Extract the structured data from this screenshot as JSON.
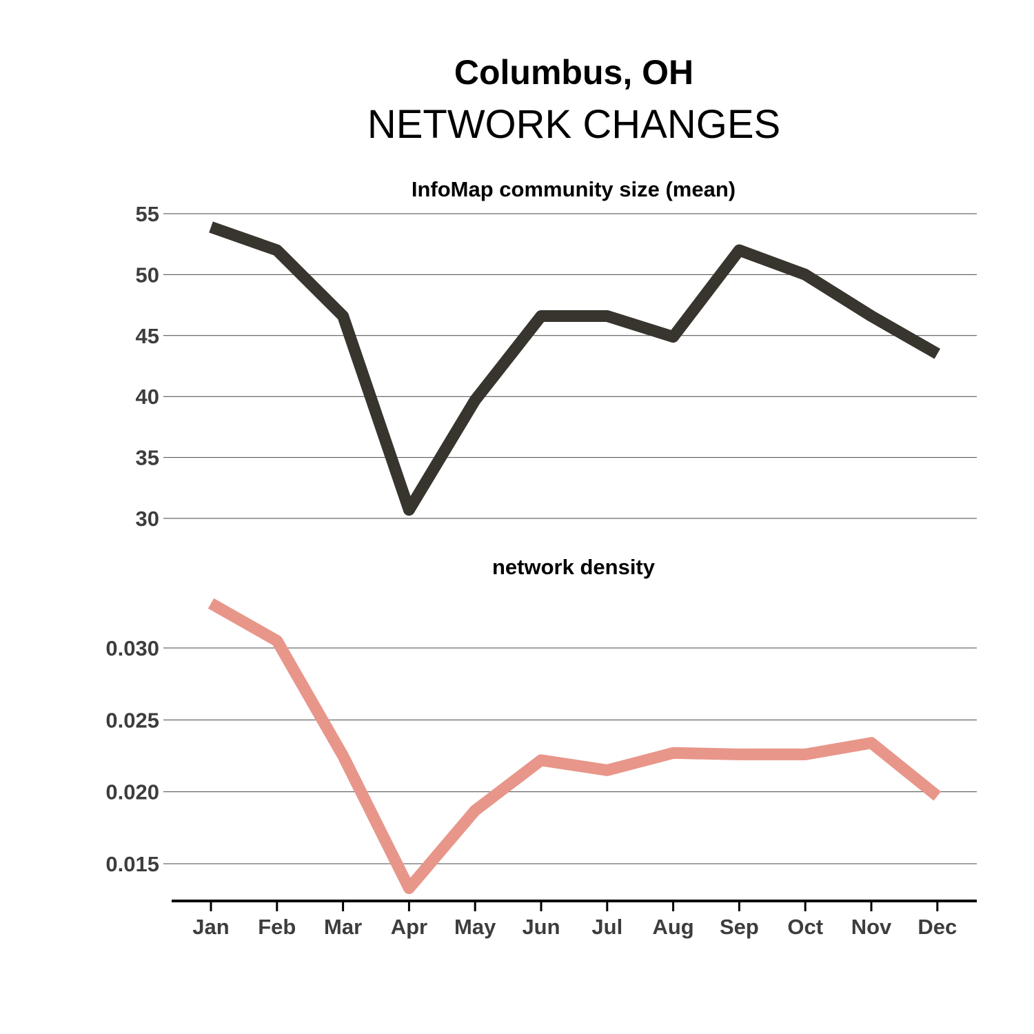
{
  "title": "Columbus, OH",
  "subtitle": "NETWORK CHANGES",
  "chart_data": [
    {
      "type": "line",
      "title": "InfoMap community size (mean)",
      "xlabel": "",
      "ylabel": "",
      "categories": [
        "Jan",
        "Feb",
        "Mar",
        "Apr",
        "May",
        "Jun",
        "Jul",
        "Aug",
        "Sep",
        "Oct",
        "Nov",
        "Dec"
      ],
      "series": [
        {
          "values": [
            53.9,
            52.0,
            46.6,
            30.7,
            39.7,
            46.6,
            46.6,
            44.9,
            52.0,
            50.0,
            46.6,
            43.5
          ],
          "color": "#37352d"
        }
      ],
      "yticks": [
        30,
        35,
        40,
        45,
        50,
        55
      ],
      "ytick_labels": [
        "30",
        "35",
        "40",
        "45",
        "50",
        "55"
      ],
      "ylim": [
        30,
        55
      ],
      "grid": true
    },
    {
      "type": "line",
      "title": "network density",
      "xlabel": "",
      "ylabel": "",
      "categories": [
        "Jan",
        "Feb",
        "Mar",
        "Apr",
        "May",
        "Jun",
        "Jul",
        "Aug",
        "Sep",
        "Oct",
        "Nov",
        "Dec"
      ],
      "series": [
        {
          "values": [
            0.0331,
            0.0305,
            0.0225,
            0.0133,
            0.0187,
            0.0222,
            0.0215,
            0.0227,
            0.0226,
            0.0226,
            0.0234,
            0.0197
          ],
          "color": "#e8968a"
        }
      ],
      "yticks": [
        0.015,
        0.02,
        0.025,
        0.03
      ],
      "ytick_labels": [
        "0.015",
        "0.020",
        "0.025",
        "0.030"
      ],
      "ylim": [
        0.0125,
        0.0335
      ],
      "grid": true
    }
  ]
}
